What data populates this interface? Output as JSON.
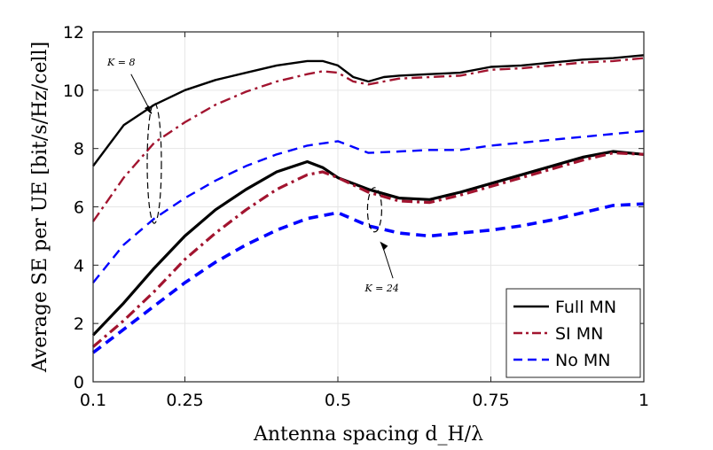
{
  "chart_data": {
    "type": "line",
    "title": "",
    "xlabel": "Antenna spacing d_H/λ",
    "ylabel": "Average SE per UE [bit/s/Hz/cell]",
    "xlim": [
      0.1,
      1
    ],
    "ylim": [
      0,
      12
    ],
    "xticks": [
      0.1,
      0.25,
      0.5,
      0.75,
      1
    ],
    "xtick_labels": [
      "0.1",
      "0.25",
      "0.5",
      "0.75",
      "1"
    ],
    "yticks": [
      0,
      2,
      4,
      6,
      8,
      10,
      12
    ],
    "ytick_labels": [
      "0",
      "2",
      "4",
      "6",
      "8",
      "10",
      "12"
    ],
    "grid": true,
    "legend": {
      "position": "bottom-right",
      "entries": [
        "Full MN",
        "SI MN",
        "No MN"
      ]
    },
    "annotations": [
      {
        "text": "K = 8",
        "x": 0.146,
        "y": 10.85
      },
      {
        "text": "K = 24",
        "x": 0.572,
        "y": 3.1
      }
    ],
    "series": [
      {
        "name": "Full MN",
        "group": "K=8",
        "color": "#000000",
        "style": "solid",
        "width": 2.4,
        "legend": true,
        "x": [
          0.1,
          0.15,
          0.2,
          0.25,
          0.3,
          0.35,
          0.4,
          0.45,
          0.475,
          0.5,
          0.525,
          0.55,
          0.575,
          0.6,
          0.65,
          0.7,
          0.75,
          0.8,
          0.85,
          0.9,
          0.95,
          1.0
        ],
        "y": [
          7.4,
          8.8,
          9.5,
          10.0,
          10.35,
          10.6,
          10.85,
          11.0,
          11.0,
          10.85,
          10.45,
          10.3,
          10.45,
          10.5,
          10.55,
          10.6,
          10.8,
          10.85,
          10.95,
          11.05,
          11.1,
          11.2
        ]
      },
      {
        "name": "SI MN",
        "group": "K=8",
        "color": "#a2142f",
        "style": "dashdot",
        "width": 2.4,
        "legend": true,
        "x": [
          0.1,
          0.15,
          0.2,
          0.25,
          0.3,
          0.35,
          0.4,
          0.45,
          0.475,
          0.5,
          0.525,
          0.55,
          0.575,
          0.6,
          0.65,
          0.7,
          0.75,
          0.8,
          0.85,
          0.9,
          0.95,
          1.0
        ],
        "y": [
          5.5,
          7.0,
          8.2,
          8.9,
          9.5,
          9.95,
          10.3,
          10.55,
          10.65,
          10.6,
          10.3,
          10.2,
          10.3,
          10.4,
          10.45,
          10.5,
          10.7,
          10.75,
          10.85,
          10.95,
          11.0,
          11.1
        ]
      },
      {
        "name": "No MN",
        "group": "K=8",
        "color": "#0000ff",
        "style": "dashed",
        "width": 2.4,
        "legend": true,
        "x": [
          0.1,
          0.15,
          0.2,
          0.25,
          0.3,
          0.35,
          0.4,
          0.45,
          0.5,
          0.55,
          0.6,
          0.65,
          0.7,
          0.75,
          0.8,
          0.85,
          0.9,
          0.95,
          1.0
        ],
        "y": [
          3.4,
          4.7,
          5.6,
          6.3,
          6.9,
          7.4,
          7.8,
          8.1,
          8.25,
          7.85,
          7.9,
          7.95,
          7.95,
          8.1,
          8.2,
          8.3,
          8.4,
          8.5,
          8.6
        ]
      },
      {
        "name": "Full MN",
        "group": "K=24",
        "color": "#000000",
        "style": "solid",
        "width": 3.2,
        "legend": false,
        "x": [
          0.1,
          0.15,
          0.2,
          0.25,
          0.3,
          0.35,
          0.4,
          0.45,
          0.475,
          0.5,
          0.55,
          0.6,
          0.65,
          0.7,
          0.75,
          0.8,
          0.85,
          0.9,
          0.95,
          1.0
        ],
        "y": [
          1.6,
          2.7,
          3.9,
          5.0,
          5.9,
          6.6,
          7.2,
          7.55,
          7.35,
          7.0,
          6.6,
          6.3,
          6.25,
          6.5,
          6.8,
          7.1,
          7.4,
          7.7,
          7.9,
          7.8
        ]
      },
      {
        "name": "SI MN",
        "group": "K=24",
        "color": "#a2142f",
        "style": "dashdot",
        "width": 3.2,
        "legend": false,
        "x": [
          0.1,
          0.15,
          0.2,
          0.25,
          0.3,
          0.35,
          0.4,
          0.45,
          0.475,
          0.5,
          0.55,
          0.6,
          0.65,
          0.7,
          0.75,
          0.8,
          0.85,
          0.9,
          0.95,
          1.0
        ],
        "y": [
          1.2,
          2.1,
          3.1,
          4.2,
          5.1,
          5.9,
          6.6,
          7.1,
          7.2,
          7.0,
          6.5,
          6.2,
          6.15,
          6.4,
          6.7,
          7.0,
          7.3,
          7.6,
          7.85,
          7.8
        ]
      },
      {
        "name": "No MN",
        "group": "K=24",
        "color": "#0000ff",
        "style": "dashed",
        "width": 3.6,
        "legend": false,
        "x": [
          0.1,
          0.15,
          0.2,
          0.25,
          0.3,
          0.35,
          0.4,
          0.45,
          0.5,
          0.55,
          0.6,
          0.65,
          0.7,
          0.75,
          0.8,
          0.85,
          0.9,
          0.95,
          1.0
        ],
        "y": [
          1.0,
          1.8,
          2.6,
          3.4,
          4.1,
          4.7,
          5.2,
          5.6,
          5.8,
          5.35,
          5.1,
          5.0,
          5.1,
          5.2,
          5.35,
          5.55,
          5.8,
          6.05,
          6.1
        ]
      }
    ]
  }
}
